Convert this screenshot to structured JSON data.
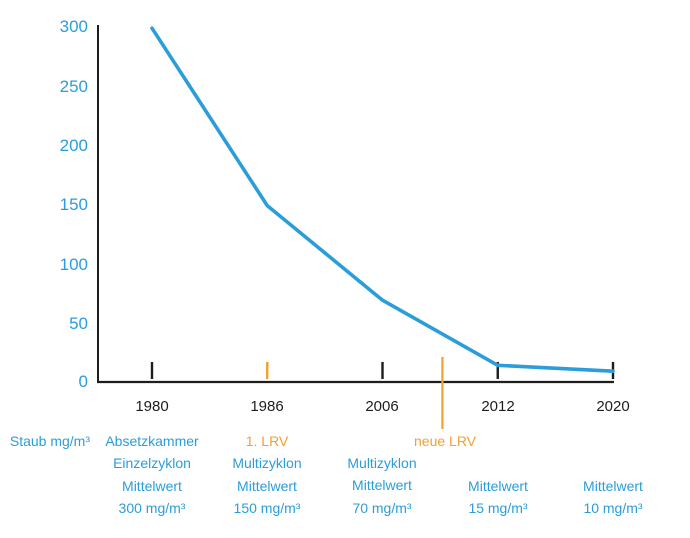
{
  "palette": {
    "blue": "#2b9dd9",
    "orange": "#f3a02f",
    "axis_black": "#1d1d1b"
  },
  "chart_data": {
    "type": "line",
    "ylabel": "Staub mg/m³",
    "categories": [
      "1980",
      "1986",
      "2006",
      "2012",
      "2020"
    ],
    "values": [
      300,
      150,
      70,
      15,
      10
    ],
    "yticks": [
      0,
      50,
      100,
      150,
      200,
      250,
      300
    ],
    "ylim": [
      0,
      300
    ],
    "grid": false,
    "legend": false,
    "line_color": "#2b9dd9",
    "accent_tick_category": "1986",
    "event_marker": {
      "label": "neue LRV",
      "between": [
        "2006",
        "2012"
      ],
      "fraction": 0.52
    },
    "annotations": [
      {
        "category": "1980",
        "lines": [
          "Absetzkammer",
          "Einzelzyklon",
          "Mittelwert",
          "300 mg/m³"
        ]
      },
      {
        "category": "1986",
        "lines": [
          "1. LRV",
          "Multizyklon",
          "Mittelwert",
          "150 mg/m³"
        ]
      },
      {
        "category": "2006",
        "lines": [
          "Multizyklon",
          "Mittelwert",
          "70 mg/m³"
        ]
      },
      {
        "category": "2012",
        "lines": [
          "Mittelwert",
          "15 mg/m³"
        ]
      },
      {
        "category": "2020",
        "lines": [
          "Mittelwert",
          "10 mg/m³"
        ]
      }
    ]
  }
}
